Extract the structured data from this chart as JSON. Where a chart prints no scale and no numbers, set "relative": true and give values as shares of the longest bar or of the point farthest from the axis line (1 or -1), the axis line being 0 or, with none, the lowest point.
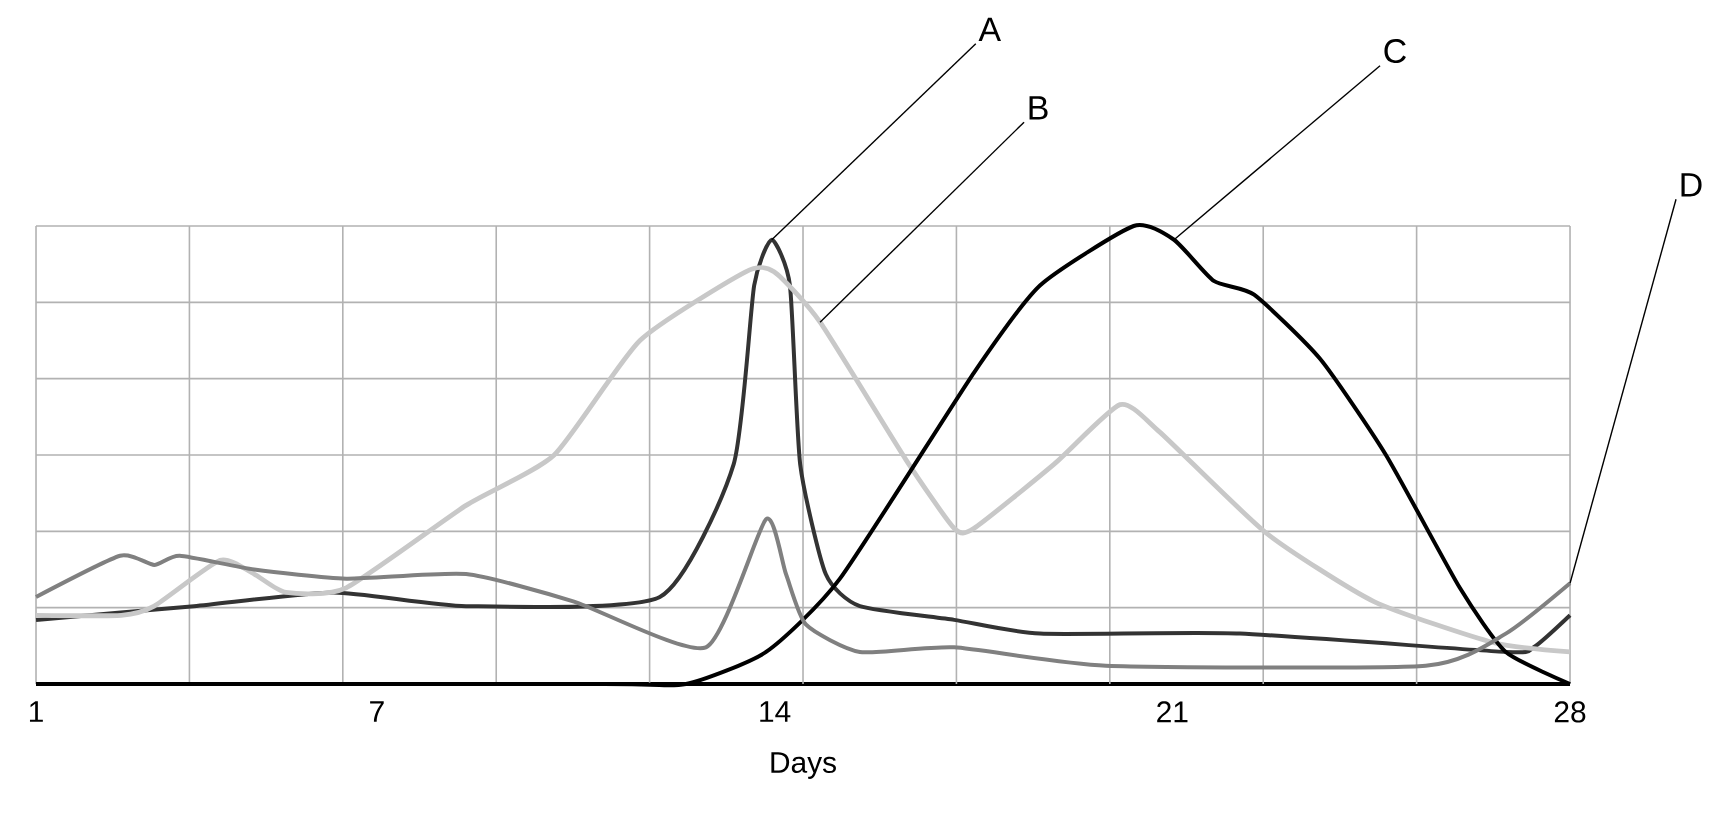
{
  "chart_data": {
    "type": "line",
    "relative": true,
    "xlabel": "Days",
    "xlim": [
      1,
      28
    ],
    "xticks": [
      1,
      7,
      14,
      21,
      28
    ],
    "grid": true,
    "marker": "none",
    "line_style": "solid",
    "series": [
      {
        "name": "A",
        "color": "#333333",
        "x": [
          1,
          3.78,
          6.24,
          8.57,
          11.98,
          13.28,
          13.64,
          13.95,
          14.27,
          14.45,
          14.9,
          15.5,
          17.16,
          18.67,
          22.19,
          26.87,
          27.36,
          28
        ],
        "values": [
          0.14,
          0.17,
          0.2,
          0.17,
          0.19,
          0.48,
          0.87,
          0.97,
          0.87,
          0.48,
          0.24,
          0.17,
          0.14,
          0.11,
          0.11,
          0.07,
          0.08,
          0.15
        ]
      },
      {
        "name": "B",
        "color": "#c8c8c8",
        "x": [
          1,
          2.5,
          3.08,
          4.24,
          4.84,
          5.4,
          6.46,
          8.57,
          10.12,
          11.63,
          13.49,
          13.99,
          14.8,
          16.31,
          17.16,
          17.51,
          18.92,
          20.08,
          20.78,
          22.65,
          24.55,
          26.66,
          28
        ],
        "values": [
          0.15,
          0.15,
          0.17,
          0.27,
          0.24,
          0.2,
          0.21,
          0.39,
          0.5,
          0.75,
          0.9,
          0.9,
          0.79,
          0.49,
          0.34,
          0.34,
          0.48,
          0.61,
          0.55,
          0.33,
          0.18,
          0.09,
          0.07
        ]
      },
      {
        "name": "C",
        "color": "#000000",
        "x": [
          1,
          11,
          12.44,
          13.85,
          15.15,
          17.51,
          18.67,
          20.32,
          21.03,
          21.73,
          22.44,
          23.6,
          24.76,
          26.06,
          26.87,
          28
        ],
        "values": [
          0,
          0,
          0,
          0.07,
          0.23,
          0.68,
          0.87,
          1.0,
          0.97,
          0.88,
          0.85,
          0.71,
          0.5,
          0.21,
          0.07,
          0
        ]
      },
      {
        "name": "D",
        "color": "#808080",
        "x": [
          1,
          2.48,
          3.08,
          3.53,
          4.84,
          6.46,
          8.57,
          10.47,
          12.79,
          13.85,
          14.2,
          14.55,
          15.5,
          17.16,
          19.83,
          25.46,
          26.87,
          28
        ],
        "values": [
          0.19,
          0.28,
          0.26,
          0.28,
          0.25,
          0.23,
          0.24,
          0.18,
          0.08,
          0.36,
          0.24,
          0.13,
          0.07,
          0.08,
          0.04,
          0.04,
          0.11,
          0.22
        ]
      }
    ]
  }
}
